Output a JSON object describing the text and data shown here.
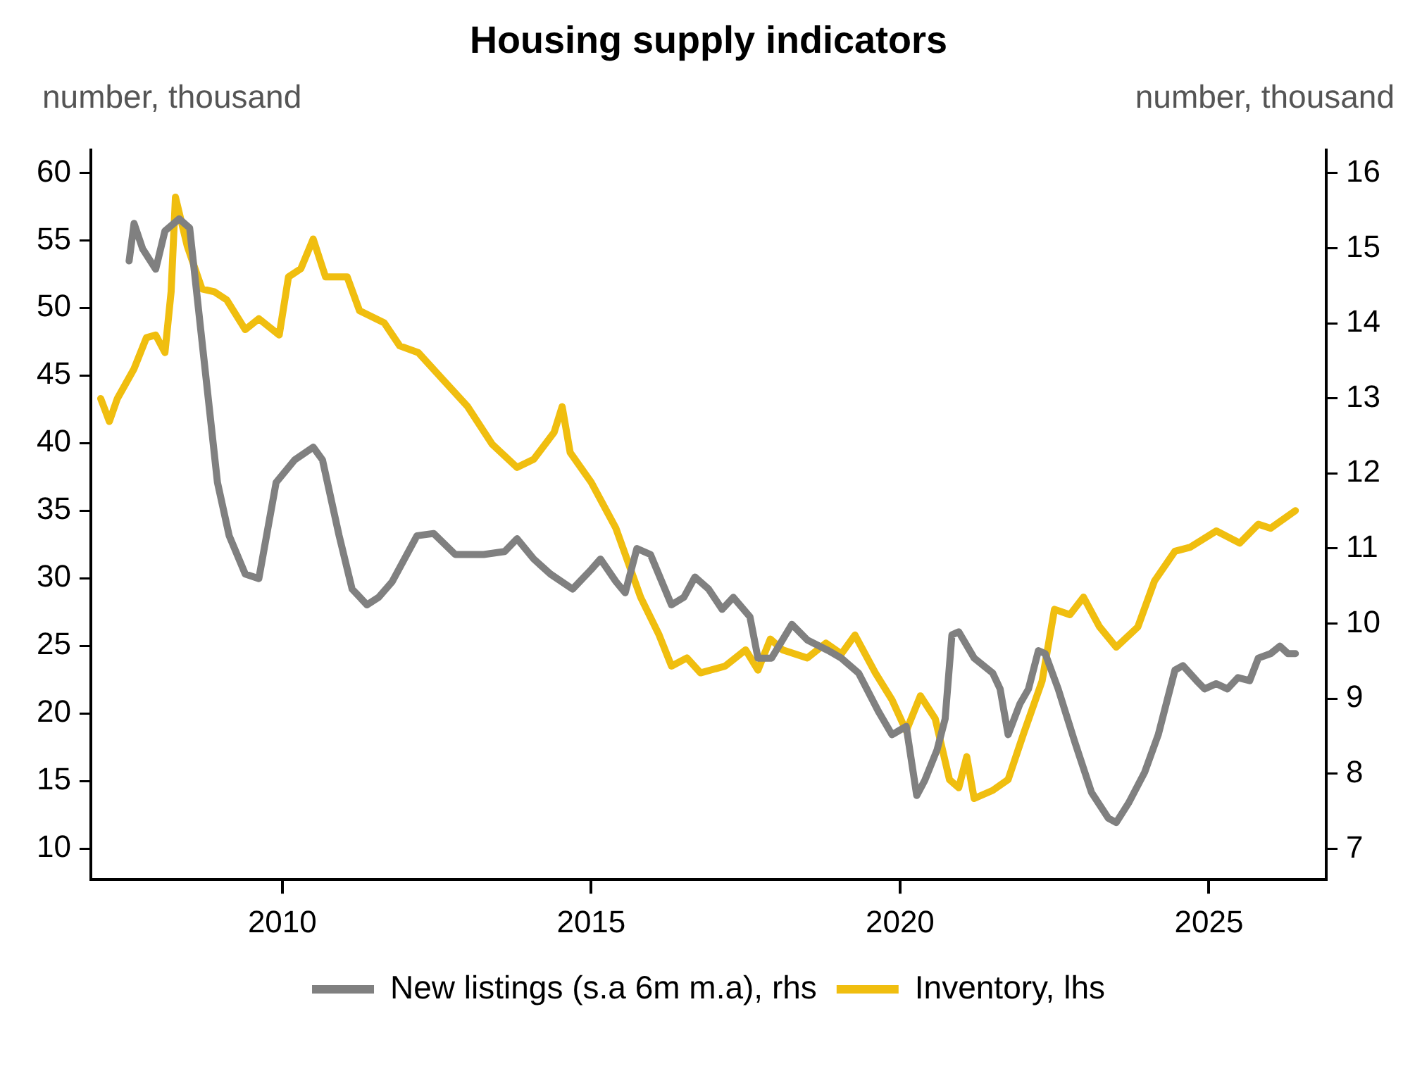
{
  "chart_data": {
    "type": "line",
    "title": "Housing supply indicators",
    "ylabel": "number, thousand",
    "y2label": "number, thousand",
    "xlim": [
      2006.9,
      2026.9
    ],
    "xticks": [
      2010,
      2015,
      2020,
      2025
    ],
    "ylim": [
      7.7,
      61.7
    ],
    "yticks": [
      10,
      15,
      20,
      25,
      30,
      35,
      40,
      45,
      50,
      55,
      60
    ],
    "y2lim": [
      6.59,
      16.31
    ],
    "y2ticks": [
      7,
      8,
      9,
      10,
      11,
      12,
      13,
      14,
      15,
      16
    ],
    "grid": false,
    "legend": "bottom",
    "marker": "none",
    "line_style": "solid",
    "series": [
      {
        "name": "New listings (s.a 6m m.a), rhs",
        "color": "#808080",
        "axis": "y2",
        "x": [
          2007.52,
          2007.6,
          2007.74,
          2007.95,
          2008.1,
          2008.33,
          2008.5,
          2008.68,
          2008.95,
          2009.14,
          2009.4,
          2009.62,
          2009.9,
          2010.2,
          2010.5,
          2010.65,
          2010.92,
          2011.13,
          2011.37,
          2011.56,
          2011.78,
          2012.18,
          2012.45,
          2012.8,
          2013.26,
          2013.6,
          2013.8,
          2014.07,
          2014.34,
          2014.7,
          2015.0,
          2015.15,
          2015.4,
          2015.55,
          2015.74,
          2015.96,
          2016.3,
          2016.5,
          2016.68,
          2016.9,
          2017.12,
          2017.3,
          2017.57,
          2017.7,
          2017.92,
          2018.25,
          2018.5,
          2018.84,
          2019.05,
          2019.33,
          2019.65,
          2019.87,
          2020.1,
          2020.27,
          2020.4,
          2020.6,
          2020.73,
          2020.84,
          2020.95,
          2021.2,
          2021.5,
          2021.62,
          2021.75,
          2021.94,
          2022.08,
          2022.24,
          2022.35,
          2022.56,
          2022.83,
          2023.1,
          2023.37,
          2023.5,
          2023.7,
          2023.96,
          2024.18,
          2024.45,
          2024.58,
          2024.8,
          2024.93,
          2025.12,
          2025.3,
          2025.47,
          2025.66,
          2025.8,
          2026.0,
          2026.15,
          2026.28,
          2026.4
        ],
        "values": [
          14.83,
          15.33,
          14.99,
          14.72,
          15.23,
          15.39,
          15.27,
          13.91,
          11.88,
          11.17,
          10.66,
          10.6,
          11.88,
          12.18,
          12.35,
          12.18,
          11.17,
          10.46,
          10.25,
          10.35,
          10.56,
          11.17,
          11.2,
          10.92,
          10.92,
          10.96,
          11.13,
          10.86,
          10.66,
          10.46,
          10.72,
          10.86,
          10.56,
          10.41,
          11.0,
          10.92,
          10.25,
          10.35,
          10.62,
          10.46,
          10.19,
          10.35,
          10.09,
          9.54,
          9.54,
          9.99,
          9.78,
          9.64,
          9.54,
          9.34,
          8.83,
          8.52,
          8.63,
          7.71,
          7.91,
          8.32,
          8.73,
          9.85,
          9.89,
          9.54,
          9.34,
          9.13,
          8.52,
          8.93,
          9.13,
          9.64,
          9.6,
          9.13,
          8.42,
          7.75,
          7.41,
          7.35,
          7.61,
          8.02,
          8.52,
          9.38,
          9.44,
          9.24,
          9.13,
          9.2,
          9.13,
          9.28,
          9.24,
          9.54,
          9.6,
          9.7,
          9.6,
          9.6
        ]
      },
      {
        "name": "Inventory, lhs",
        "color": "#f0be0f",
        "x": [
          2007.06,
          2007.2,
          2007.33,
          2007.6,
          2007.8,
          2007.95,
          2008.1,
          2008.2,
          2008.27,
          2008.46,
          2008.7,
          2008.9,
          2009.1,
          2009.4,
          2009.62,
          2009.95,
          2010.1,
          2010.3,
          2010.5,
          2010.7,
          2011.05,
          2011.25,
          2011.65,
          2011.9,
          2012.2,
          2012.6,
          2013.0,
          2013.4,
          2013.8,
          2014.07,
          2014.4,
          2014.53,
          2014.66,
          2015.0,
          2015.4,
          2015.8,
          2016.1,
          2016.3,
          2016.55,
          2016.77,
          2017.17,
          2017.5,
          2017.7,
          2017.9,
          2018.1,
          2018.5,
          2018.8,
          2019.05,
          2019.27,
          2019.6,
          2019.87,
          2020.1,
          2020.33,
          2020.57,
          2020.8,
          2020.95,
          2021.08,
          2021.2,
          2021.5,
          2021.75,
          2022.0,
          2022.3,
          2022.5,
          2022.75,
          2022.97,
          2023.23,
          2023.5,
          2023.85,
          2024.12,
          2024.45,
          2024.7,
          2025.12,
          2025.5,
          2025.8,
          2026.0,
          2026.4
        ],
        "values": [
          43.3,
          41.6,
          43.3,
          45.5,
          47.8,
          48,
          46.7,
          51.2,
          58.2,
          54.6,
          51.4,
          51.2,
          50.6,
          48.4,
          49.2,
          48,
          52.3,
          52.9,
          55.1,
          52.3,
          52.3,
          49.8,
          48.9,
          47.2,
          46.7,
          44.7,
          42.7,
          39.9,
          38.2,
          38.8,
          40.8,
          42.7,
          39.3,
          37.1,
          33.7,
          28.6,
          25.8,
          23.5,
          24.1,
          23,
          23.5,
          24.7,
          23.2,
          25.5,
          24.7,
          24.1,
          25.2,
          24.4,
          25.8,
          23,
          21,
          18.7,
          21.3,
          19.6,
          15.1,
          14.5,
          16.8,
          13.7,
          14.3,
          15.1,
          18.5,
          22.4,
          27.7,
          27.3,
          28.6,
          26.4,
          24.9,
          26.4,
          29.8,
          32,
          32.3,
          33.5,
          32.6,
          34,
          33.7,
          35
        ]
      }
    ]
  }
}
